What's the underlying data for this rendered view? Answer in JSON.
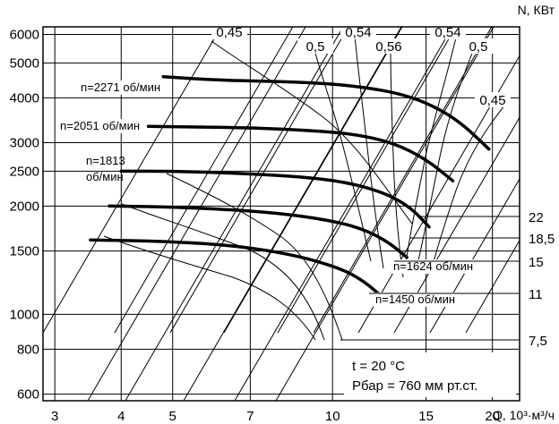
{
  "chart_data": {
    "type": "line",
    "xlabel": "Q, 10³·м³/ч",
    "ylabel": "N, КВт",
    "x_scale": "log",
    "y_scale": "log",
    "xlim": [
      2.85,
      22.5
    ],
    "ylim": [
      575,
      6300
    ],
    "x_ticks": [
      3,
      4,
      5,
      7,
      10,
      15,
      20
    ],
    "x_tick_labels": [
      "3",
      "4",
      "5",
      "7",
      "10",
      "15",
      "20"
    ],
    "y_ticks": [
      600,
      800,
      1000,
      1500,
      2000,
      2500,
      3000,
      4000,
      5000,
      6000
    ],
    "y_tick_labels": [
      "600",
      "800",
      "1000",
      "1500",
      "2000",
      "2500",
      "3000",
      "4000",
      "5000",
      "6000"
    ],
    "grid": true,
    "series": [
      {
        "name": "n=2271 об/мин",
        "x": [
          4.8,
          6.0,
          7.5,
          9.5,
          11.5,
          13.5,
          15.5,
          17.5,
          19.7
        ],
        "y": [
          4580,
          4480,
          4450,
          4400,
          4280,
          4100,
          3800,
          3400,
          2880
        ]
      },
      {
        "name": "n=2051 об/мин",
        "x": [
          4.5,
          5.5,
          7.0,
          9.0,
          11.0,
          13.0,
          15.0,
          16.85
        ],
        "y": [
          3330,
          3320,
          3300,
          3250,
          3170,
          3000,
          2700,
          2350
        ]
      },
      {
        "name": "n=1813 об/мин",
        "x": [
          4.0,
          5.0,
          6.5,
          8.5,
          10.5,
          12.5,
          14.0,
          15.2
        ],
        "y": [
          2500,
          2500,
          2470,
          2420,
          2340,
          2180,
          1990,
          1750
        ]
      },
      {
        "name": "n=1624 об/мин",
        "x": [
          3.8,
          4.8,
          6.2,
          8.0,
          10.0,
          11.5,
          12.8,
          13.8
        ],
        "y": [
          2000,
          1990,
          1960,
          1910,
          1820,
          1720,
          1580,
          1440
        ]
      },
      {
        "name": "n=1450 об/мин",
        "x": [
          3.5,
          4.5,
          6.0,
          7.5,
          9.0,
          10.5,
          11.5,
          12.3
        ],
        "y": [
          1610,
          1600,
          1570,
          1510,
          1430,
          1330,
          1230,
          1130
        ]
      }
    ],
    "efficiency_lines": {
      "labels": [
        "0,45",
        "0,5",
        "0,54",
        "0,56",
        "0,54",
        "0,5",
        "0,45"
      ]
    },
    "power_scale": {
      "labels": [
        "22",
        "18,5",
        "15",
        "11",
        "7,5"
      ]
    },
    "annotations": [
      "t = 20 °C",
      "Pбар = 760 мм рт.ст."
    ]
  }
}
